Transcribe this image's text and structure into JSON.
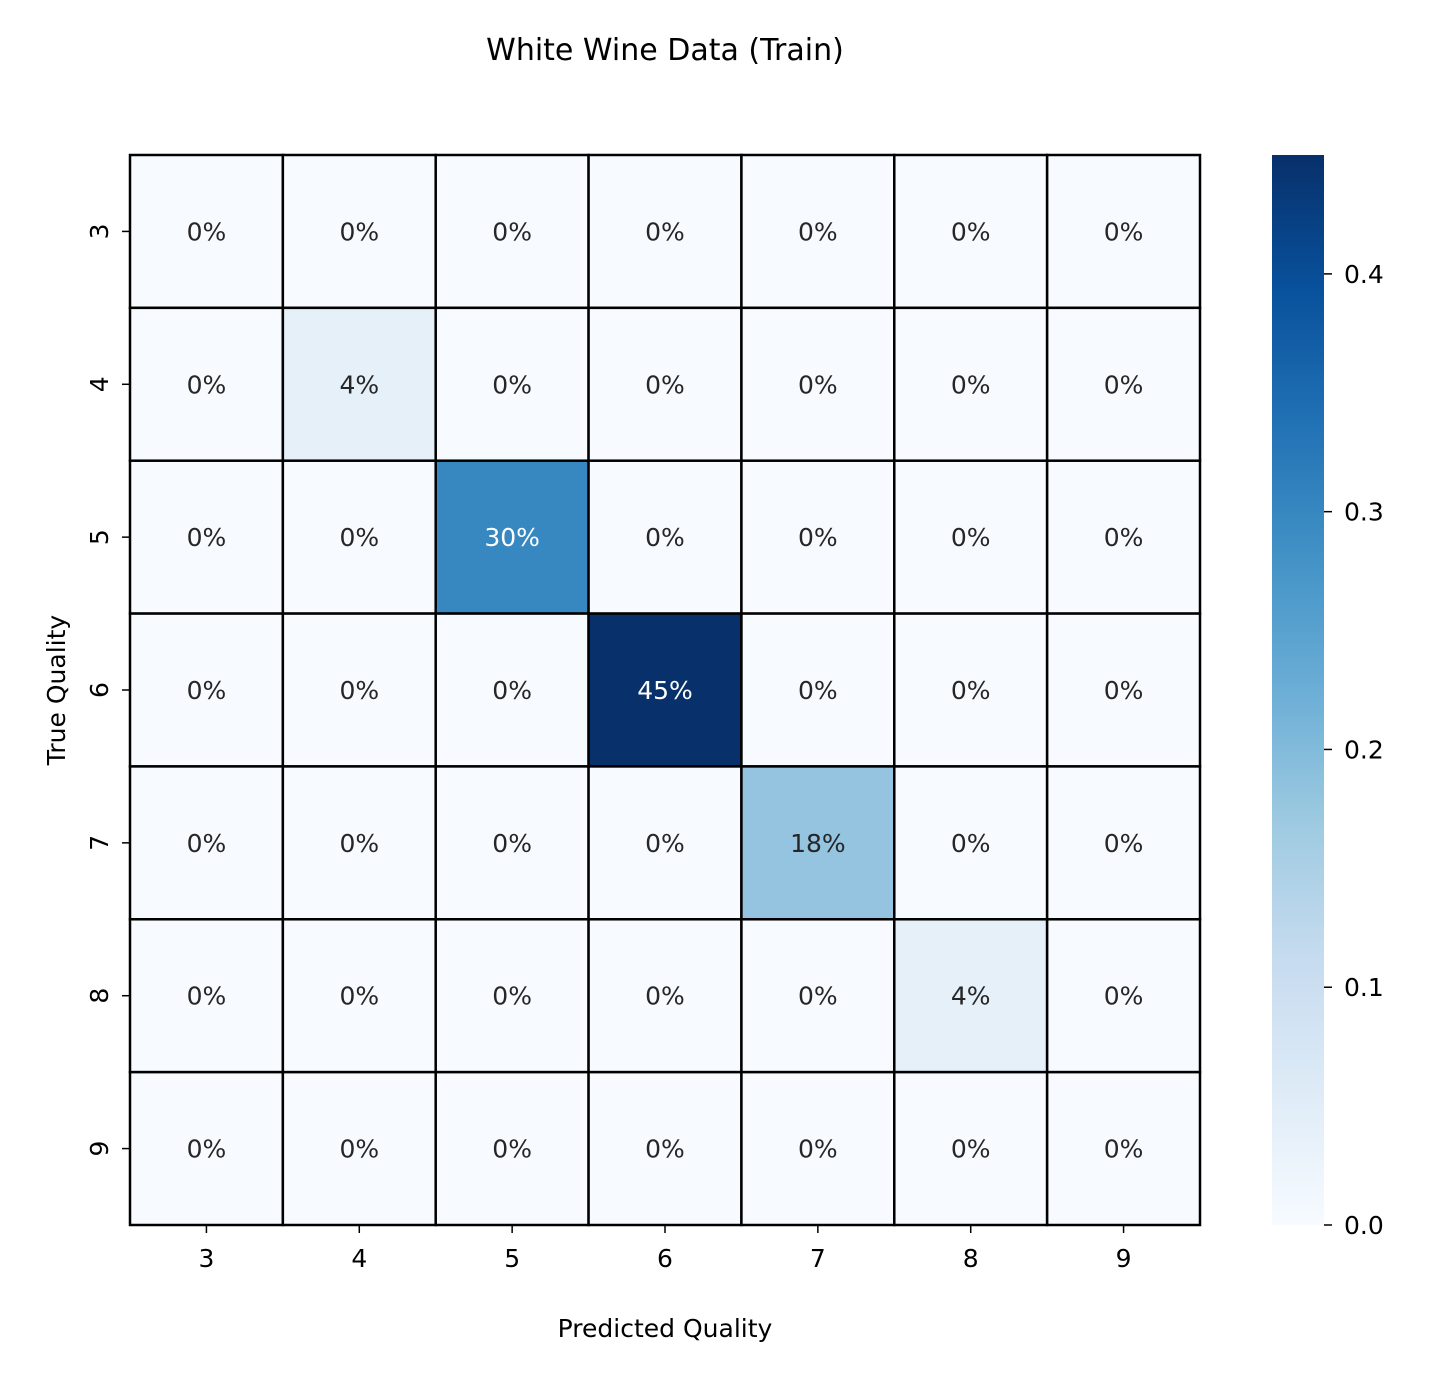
{
  "chart_data": {
    "type": "heatmap",
    "title": "White Wine Data (Train)",
    "xlabel": "Predicted Quality",
    "ylabel": "True Quality",
    "x_categories": [
      "3",
      "4",
      "5",
      "6",
      "7",
      "8",
      "9"
    ],
    "y_categories": [
      "3",
      "4",
      "5",
      "6",
      "7",
      "8",
      "9"
    ],
    "values": [
      [
        0,
        0,
        0,
        0,
        0,
        0,
        0
      ],
      [
        0,
        0.04,
        0,
        0,
        0,
        0,
        0
      ],
      [
        0,
        0,
        0.3,
        0,
        0,
        0,
        0
      ],
      [
        0,
        0,
        0,
        0.45,
        0,
        0,
        0
      ],
      [
        0,
        0,
        0,
        0,
        0.18,
        0,
        0
      ],
      [
        0,
        0,
        0,
        0,
        0,
        0.04,
        0
      ],
      [
        0,
        0,
        0,
        0,
        0,
        0,
        0
      ]
    ],
    "annotations": [
      [
        "0%",
        "0%",
        "0%",
        "0%",
        "0%",
        "0%",
        "0%"
      ],
      [
        "0%",
        "4%",
        "0%",
        "0%",
        "0%",
        "0%",
        "0%"
      ],
      [
        "0%",
        "0%",
        "30%",
        "0%",
        "0%",
        "0%",
        "0%"
      ],
      [
        "0%",
        "0%",
        "0%",
        "45%",
        "0%",
        "0%",
        "0%"
      ],
      [
        "0%",
        "0%",
        "0%",
        "0%",
        "18%",
        "0%",
        "0%"
      ],
      [
        "0%",
        "0%",
        "0%",
        "0%",
        "0%",
        "4%",
        "0%"
      ],
      [
        "0%",
        "0%",
        "0%",
        "0%",
        "0%",
        "0%",
        "0%"
      ]
    ],
    "colorbar": {
      "range": [
        0,
        0.45
      ],
      "ticks": [
        "0.0",
        "0.1",
        "0.2",
        "0.3",
        "0.4"
      ],
      "tick_values": [
        0,
        0.1,
        0.2,
        0.3,
        0.4
      ],
      "colormap": "Blues"
    },
    "grid": true,
    "colors": {
      "cell_border": "#000000",
      "text_dark": "#262626",
      "text_light": "#ffffff"
    }
  }
}
